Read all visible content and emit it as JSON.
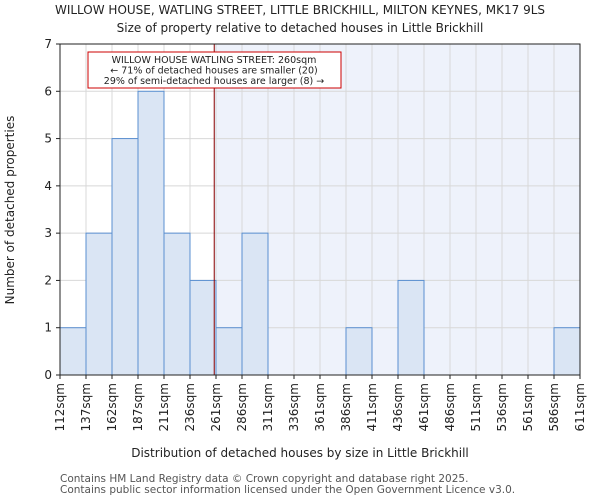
{
  "chart_data": {
    "type": "bar",
    "title": "WILLOW HOUSE, WATLING STREET, LITTLE BRICKHILL, MILTON KEYNES, MK17 9LS",
    "subtitle": "Size of property relative to detached houses in Little Brickhill",
    "xlabel": "Distribution of detached houses by size in Little Brickhill",
    "ylabel": "Number of detached properties",
    "bin_edges": [
      112,
      137,
      162,
      187,
      211,
      236,
      261,
      286,
      311,
      336,
      361,
      386,
      411,
      436,
      461,
      486,
      511,
      536,
      561,
      586,
      611
    ],
    "tick_labels": [
      "112sqm",
      "137sqm",
      "162sqm",
      "187sqm",
      "211sqm",
      "236sqm",
      "261sqm",
      "286sqm",
      "311sqm",
      "336sqm",
      "361sqm",
      "386sqm",
      "411sqm",
      "436sqm",
      "461sqm",
      "486sqm",
      "511sqm",
      "536sqm",
      "561sqm",
      "586sqm",
      "611sqm"
    ],
    "values": [
      1,
      3,
      5,
      6,
      3,
      2,
      1,
      3,
      0,
      0,
      0,
      1,
      0,
      2,
      0,
      0,
      0,
      0,
      0,
      1
    ],
    "ylim": [
      0,
      7
    ],
    "yticks": [
      "0",
      "1",
      "2",
      "3",
      "4",
      "5",
      "6",
      "7"
    ],
    "grid": true,
    "marker_value": 260,
    "annotation": {
      "line1": "WILLOW HOUSE WATLING STREET: 260sqm",
      "line2": "← 71% of detached houses are smaller (20)",
      "line3": "29% of semi-detached houses are larger (8) →"
    },
    "colors": {
      "bar_fill": "#dae5f4",
      "bar_edge": "#5a8fd0",
      "highlight_bg": "#eef2fb",
      "marker": "#8b0000",
      "annotation_border": "#cc0000"
    }
  },
  "footer": {
    "line1": "Contains HM Land Registry data © Crown copyright and database right 2025.",
    "line2": "Contains public sector information licensed under the Open Government Licence v3.0."
  }
}
